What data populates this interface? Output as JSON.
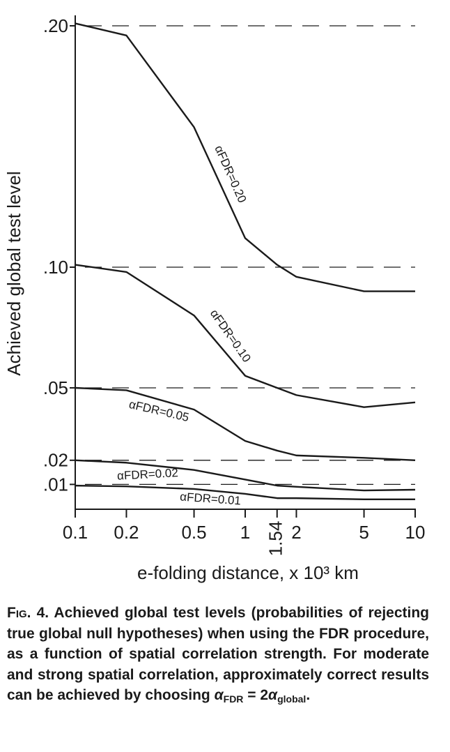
{
  "chart_data": {
    "type": "line",
    "xlabel": "e-folding distance, x 10³ km",
    "ylabel": "Achieved global test level",
    "xscale": "log",
    "xlim": [
      0.1,
      10
    ],
    "xticks": [
      0.1,
      0.2,
      0.5,
      1,
      1.54,
      2,
      5,
      10
    ],
    "ylim": [
      0,
      0.2
    ],
    "yticks": [
      {
        "value": 0.01,
        "label": ".01"
      },
      {
        "value": 0.02,
        "label": ".02"
      },
      {
        "value": 0.05,
        "label": ".05"
      },
      {
        "value": 0.1,
        "label": ".10"
      },
      {
        "value": 0.2,
        "label": ".20"
      }
    ],
    "grid": true,
    "x": [
      0.1,
      0.2,
      0.5,
      1,
      1.54,
      2,
      5,
      10
    ],
    "series": [
      {
        "name": "αFDR=0.20",
        "color": "#1a1a1a",
        "values": [
          0.201,
          0.196,
          0.158,
          0.112,
          0.101,
          0.096,
          0.09,
          0.09
        ]
      },
      {
        "name": "αFDR=0.10",
        "color": "#1a1a1a",
        "values": [
          0.101,
          0.098,
          0.08,
          0.055,
          0.05,
          0.047,
          0.042,
          0.044
        ]
      },
      {
        "name": "αFDR=0.05",
        "color": "#1a1a1a",
        "values": [
          0.05,
          0.049,
          0.041,
          0.028,
          0.024,
          0.022,
          0.021,
          0.02
        ]
      },
      {
        "name": "αFDR=0.02",
        "color": "#1a1a1a",
        "values": [
          0.02,
          0.019,
          0.016,
          0.012,
          0.0095,
          0.009,
          0.0075,
          0.0078
        ]
      },
      {
        "name": "αFDR=0.01",
        "color": "#1a1a1a",
        "values": [
          0.0095,
          0.0092,
          0.0081,
          0.0061,
          0.0043,
          0.0043,
          0.0038,
          0.0038
        ]
      }
    ]
  },
  "caption": {
    "label": "Fig. 4.",
    "text": "Achieved global test levels (probabilities of rejecting true global null hypotheses) when using the FDR procedure, as a function of spatial correlation strength. For moderate and strong spatial correlation, approximately correct results can be achieved by choosing",
    "formula": [
      "α",
      "FDR",
      " = 2",
      "α",
      "global",
      "."
    ]
  }
}
